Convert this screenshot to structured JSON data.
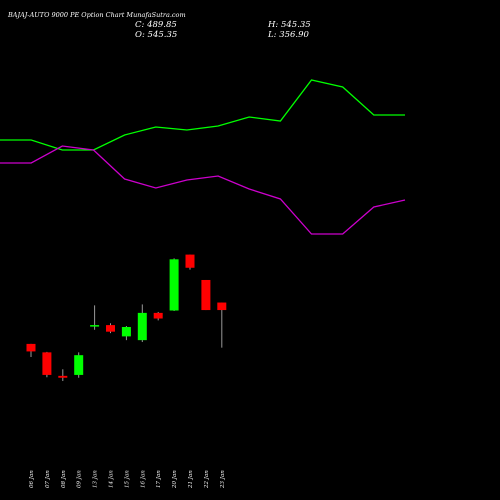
{
  "header": {
    "title": "BAJAJ-AUTO 9000  PE Option  Chart MunafaSutra.com",
    "close": "C: 489.85",
    "open": "O: 545.35",
    "high": "H: 545.35",
    "low": "L: 356.90"
  },
  "chart_data": {
    "type": "candlestick",
    "title": "BAJAJ-AUTO 9000  PE Option  Chart MunafaSutra.com",
    "categories": [
      "06 Jan",
      "07 Jan",
      "08 Jan",
      "09 Jan",
      "13 Jan",
      "14 Jan",
      "15 Jan",
      "16 Jan",
      "17 Jan",
      "20 Jan",
      "21 Jan",
      "22 Jan",
      "23 Jan"
    ],
    "candles": [
      {
        "open": 1150,
        "high": 1150,
        "low": 1010,
        "close": 1070
      },
      {
        "open": 1060,
        "high": 1065,
        "low": 795,
        "close": 820
      },
      {
        "open": 810,
        "high": 880,
        "low": 755,
        "close": 790
      },
      {
        "open": 820,
        "high": 1060,
        "low": 790,
        "close": 1030
      },
      {
        "open": 1340,
        "high": 1560,
        "low": 1300,
        "close": 1350
      },
      {
        "open": 1350,
        "high": 1370,
        "low": 1265,
        "close": 1280
      },
      {
        "open": 1230,
        "high": 1340,
        "low": 1190,
        "close": 1330
      },
      {
        "open": 1190,
        "high": 1570,
        "low": 1170,
        "close": 1480
      },
      {
        "open": 1480,
        "high": 1490,
        "low": 1400,
        "close": 1420
      },
      {
        "open": 1505,
        "high": 2060,
        "low": 1500,
        "close": 2050
      },
      {
        "open": 2100,
        "high": 2100,
        "low": 1940,
        "close": 1960
      },
      {
        "open": 1830,
        "high": 1830,
        "low": 1510,
        "close": 1510
      },
      {
        "open": 1590,
        "high": 1590,
        "low": 1110,
        "close": 1510
      }
    ],
    "indicators": [
      {
        "color": "#00ff00",
        "points": [
          140,
          140,
          150,
          150,
          135,
          127,
          130,
          126,
          117,
          121,
          80,
          87,
          115,
          115
        ]
      },
      {
        "color": "#cc00cc",
        "points": [
          163,
          163,
          146,
          150,
          179,
          188,
          180,
          176,
          189,
          199,
          234,
          234,
          207,
          200
        ]
      }
    ],
    "colors": {
      "up": "#00ff00",
      "down": "#ff0000",
      "wick": "#999999"
    }
  }
}
